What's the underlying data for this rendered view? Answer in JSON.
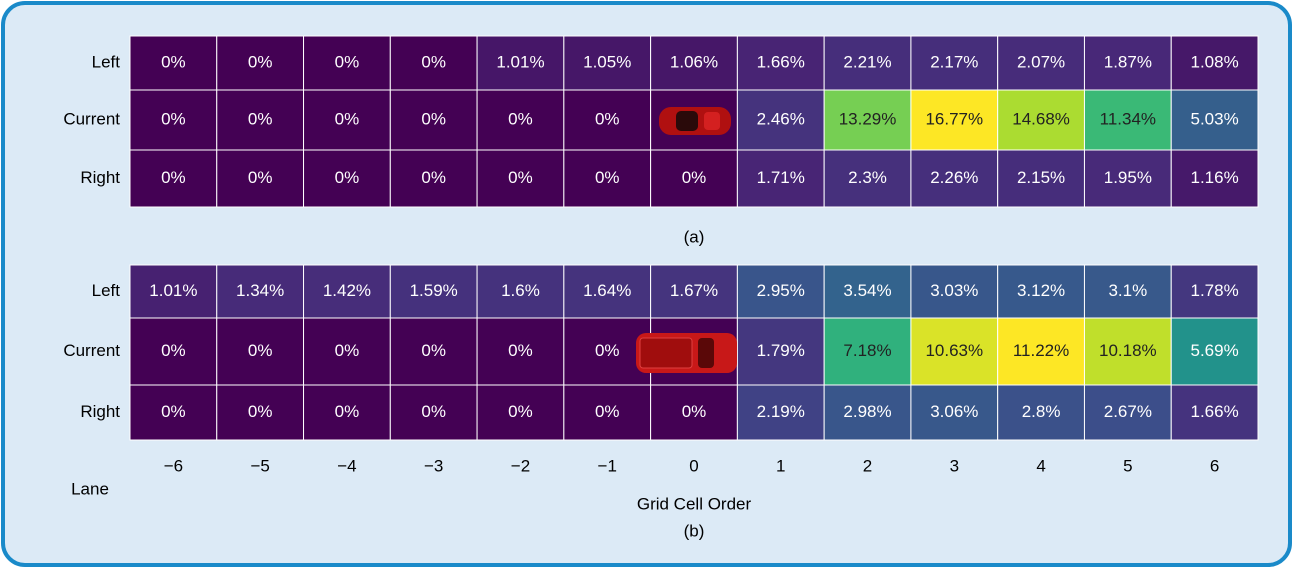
{
  "chart_data": [
    {
      "type": "heatmap",
      "caption": "(a)",
      "rows": [
        "Left",
        "Current",
        "Right"
      ],
      "values": [
        [
          0,
          0,
          0,
          0,
          1.01,
          1.05,
          1.06,
          1.66,
          2.21,
          2.17,
          2.07,
          1.87,
          1.08
        ],
        [
          0,
          0,
          0,
          0,
          0,
          0,
          null,
          2.46,
          13.29,
          16.77,
          14.68,
          11.34,
          5.03
        ],
        [
          0,
          0,
          0,
          0,
          0,
          0,
          0,
          1.71,
          2.3,
          2.26,
          2.15,
          1.95,
          1.16
        ]
      ],
      "value_labels": [
        [
          "0%",
          "0%",
          "0%",
          "0%",
          "1.01%",
          "1.05%",
          "1.06%",
          "1.66%",
          "2.21%",
          "2.17%",
          "2.07%",
          "1.87%",
          "1.08%"
        ],
        [
          "0%",
          "0%",
          "0%",
          "0%",
          "0%",
          "0%",
          null,
          "2.46%",
          "13.29%",
          "16.77%",
          "14.68%",
          "11.34%",
          "5.03%"
        ],
        [
          "0%",
          "0%",
          "0%",
          "0%",
          "0%",
          "0%",
          "0%",
          "1.71%",
          "2.3%",
          "2.26%",
          "2.15%",
          "1.95%",
          "1.16%"
        ]
      ]
    },
    {
      "type": "heatmap",
      "caption": "(b)",
      "x_label": "Grid Cell Order",
      "y_label": "Lane",
      "categories": [
        "−6",
        "−5",
        "−4",
        "−3",
        "−2",
        "−1",
        "0",
        "1",
        "2",
        "3",
        "4",
        "5",
        "6"
      ],
      "rows": [
        "Left",
        "Current",
        "Right"
      ],
      "values": [
        [
          1.01,
          1.34,
          1.42,
          1.59,
          1.6,
          1.64,
          1.67,
          2.95,
          3.54,
          3.03,
          3.12,
          3.1,
          1.78
        ],
        [
          0,
          0,
          0,
          0,
          0,
          0,
          null,
          1.79,
          7.18,
          10.63,
          11.22,
          10.18,
          5.69
        ],
        [
          0,
          0,
          0,
          0,
          0,
          0,
          0,
          2.19,
          2.98,
          3.06,
          2.8,
          2.67,
          1.66
        ]
      ],
      "value_labels": [
        [
          "1.01%",
          "1.34%",
          "1.42%",
          "1.59%",
          "1.6%",
          "1.64%",
          "1.67%",
          "2.95%",
          "3.54%",
          "3.03%",
          "3.12%",
          "3.1%",
          "1.78%"
        ],
        [
          "0%",
          "0%",
          "0%",
          "0%",
          "0%",
          "0%",
          null,
          "1.79%",
          "7.18%",
          "10.63%",
          "11.22%",
          "10.18%",
          "5.69%"
        ],
        [
          "0%",
          "0%",
          "0%",
          "0%",
          "0%",
          "0%",
          "0%",
          "2.19%",
          "2.98%",
          "3.06%",
          "2.8%",
          "2.67%",
          "1.66%"
        ]
      ]
    }
  ]
}
